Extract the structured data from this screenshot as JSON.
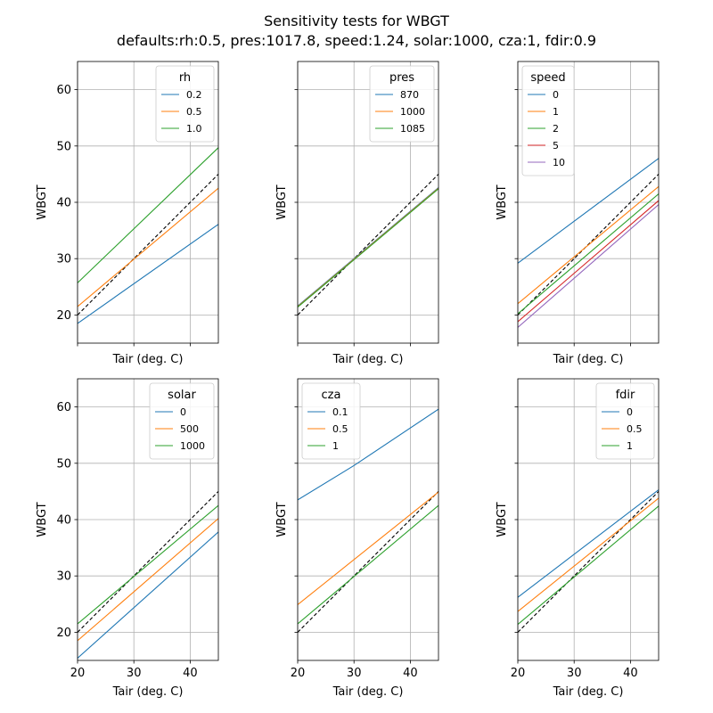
{
  "title_line1": "Sensitivity tests for WBGT",
  "title_line2": "defaults:rh:0.5, pres:1017.8, speed:1.24, solar:1000, cza:1, fdir:0.9",
  "chart_data": [
    {
      "type": "line",
      "id": "rh",
      "xlabel": "Tair (deg. C)",
      "ylabel": "WBGT",
      "xlim": [
        20,
        45
      ],
      "ylim": [
        15,
        65
      ],
      "xticks": [
        20,
        30,
        40
      ],
      "yticks": [
        20,
        30,
        40,
        50,
        60
      ],
      "show_xticklabels": false,
      "show_yticklabels": true,
      "grid": true,
      "legend_title": "rh",
      "legend_position": "upper-right",
      "reference_line": {
        "x": [
          20,
          45
        ],
        "y": [
          20,
          45
        ],
        "style": "dashed",
        "color": "#000000"
      },
      "series": [
        {
          "name": "0.2",
          "color": "#1f77b4",
          "x": [
            20,
            45
          ],
          "y": [
            18.5,
            36.1
          ]
        },
        {
          "name": "0.5",
          "color": "#ff7f0e",
          "x": [
            20,
            45
          ],
          "y": [
            21.5,
            42.5
          ]
        },
        {
          "name": "1.0",
          "color": "#2ca02c",
          "x": [
            20,
            45
          ],
          "y": [
            25.7,
            49.7
          ]
        }
      ]
    },
    {
      "type": "line",
      "id": "pres",
      "xlabel": "Tair (deg. C)",
      "ylabel": "WBGT",
      "xlim": [
        20,
        45
      ],
      "ylim": [
        15,
        65
      ],
      "xticks": [
        20,
        30,
        40
      ],
      "yticks": [
        20,
        30,
        40,
        50,
        60
      ],
      "show_xticklabels": false,
      "show_yticklabels": false,
      "grid": true,
      "legend_title": "pres",
      "legend_position": "upper-right",
      "reference_line": {
        "x": [
          20,
          45
        ],
        "y": [
          20,
          45
        ],
        "style": "dashed",
        "color": "#000000"
      },
      "series": [
        {
          "name": "870",
          "color": "#1f77b4",
          "x": [
            20,
            45
          ],
          "y": [
            21.6,
            42.6
          ]
        },
        {
          "name": "1000",
          "color": "#ff7f0e",
          "x": [
            20,
            45
          ],
          "y": [
            21.5,
            42.5
          ]
        },
        {
          "name": "1085",
          "color": "#2ca02c",
          "x": [
            20,
            45
          ],
          "y": [
            21.4,
            42.4
          ]
        }
      ]
    },
    {
      "type": "line",
      "id": "speed",
      "xlabel": "Tair (deg. C)",
      "ylabel": "WBGT",
      "xlim": [
        20,
        45
      ],
      "ylim": [
        15,
        65
      ],
      "xticks": [
        20,
        30,
        40
      ],
      "yticks": [
        20,
        30,
        40,
        50,
        60
      ],
      "show_xticklabels": false,
      "show_yticklabels": false,
      "grid": true,
      "legend_title": "speed",
      "legend_position": "upper-left",
      "reference_line": {
        "x": [
          20,
          45
        ],
        "y": [
          20,
          45
        ],
        "style": "dashed",
        "color": "#000000"
      },
      "series": [
        {
          "name": "0",
          "color": "#1f77b4",
          "x": [
            20,
            45
          ],
          "y": [
            29.2,
            47.8
          ]
        },
        {
          "name": "1",
          "color": "#ff7f0e",
          "x": [
            20,
            45
          ],
          "y": [
            22.0,
            42.8
          ]
        },
        {
          "name": "2",
          "color": "#2ca02c",
          "x": [
            20,
            45
          ],
          "y": [
            20.2,
            41.5
          ]
        },
        {
          "name": "5",
          "color": "#d62728",
          "x": [
            20,
            45
          ],
          "y": [
            18.8,
            40.3
          ]
        },
        {
          "name": "10",
          "color": "#9467bd",
          "x": [
            20,
            45
          ],
          "y": [
            17.8,
            39.6
          ]
        }
      ]
    },
    {
      "type": "line",
      "id": "solar",
      "xlabel": "Tair (deg. C)",
      "ylabel": "WBGT",
      "xlim": [
        20,
        45
      ],
      "ylim": [
        15,
        65
      ],
      "xticks": [
        20,
        30,
        40
      ],
      "yticks": [
        20,
        30,
        40,
        50,
        60
      ],
      "show_xticklabels": true,
      "show_yticklabels": true,
      "grid": true,
      "legend_title": "solar",
      "legend_position": "upper-right",
      "reference_line": {
        "x": [
          20,
          45
        ],
        "y": [
          20,
          45
        ],
        "style": "dashed",
        "color": "#000000"
      },
      "series": [
        {
          "name": "0",
          "color": "#1f77b4",
          "x": [
            20,
            45
          ],
          "y": [
            15.4,
            37.8
          ]
        },
        {
          "name": "500",
          "color": "#ff7f0e",
          "x": [
            20,
            45
          ],
          "y": [
            18.5,
            40.2
          ]
        },
        {
          "name": "1000",
          "color": "#2ca02c",
          "x": [
            20,
            45
          ],
          "y": [
            21.5,
            42.5
          ]
        }
      ]
    },
    {
      "type": "line",
      "id": "cza",
      "xlabel": "Tair (deg. C)",
      "ylabel": "WBGT",
      "xlim": [
        20,
        45
      ],
      "ylim": [
        15,
        65
      ],
      "xticks": [
        20,
        30,
        40
      ],
      "yticks": [
        20,
        30,
        40,
        50,
        60
      ],
      "show_xticklabels": true,
      "show_yticklabels": false,
      "grid": true,
      "legend_title": "cza",
      "legend_position": "upper-left",
      "reference_line": {
        "x": [
          20,
          45
        ],
        "y": [
          20,
          45
        ],
        "style": "dashed",
        "color": "#000000"
      },
      "series": [
        {
          "name": "0.1",
          "color": "#1f77b4",
          "x": [
            20,
            30,
            45
          ],
          "y": [
            43.5,
            49.6,
            59.6
          ]
        },
        {
          "name": "0.5",
          "color": "#ff7f0e",
          "x": [
            20,
            45
          ],
          "y": [
            24.9,
            44.9
          ]
        },
        {
          "name": "1",
          "color": "#2ca02c",
          "x": [
            20,
            45
          ],
          "y": [
            21.5,
            42.5
          ]
        }
      ]
    },
    {
      "type": "line",
      "id": "fdir",
      "xlabel": "Tair (deg. C)",
      "ylabel": "WBGT",
      "xlim": [
        20,
        45
      ],
      "ylim": [
        15,
        65
      ],
      "xticks": [
        20,
        30,
        40
      ],
      "yticks": [
        20,
        30,
        40,
        50,
        60
      ],
      "show_xticklabels": true,
      "show_yticklabels": false,
      "grid": true,
      "legend_title": "fdir",
      "legend_position": "upper-right",
      "reference_line": {
        "x": [
          20,
          45
        ],
        "y": [
          20,
          45
        ],
        "style": "dashed",
        "color": "#000000"
      },
      "series": [
        {
          "name": "0",
          "color": "#1f77b4",
          "x": [
            20,
            45
          ],
          "y": [
            26.2,
            45.3
          ]
        },
        {
          "name": "0.5",
          "color": "#ff7f0e",
          "x": [
            20,
            45
          ],
          "y": [
            23.7,
            43.8
          ]
        },
        {
          "name": "1",
          "color": "#2ca02c",
          "x": [
            20,
            45
          ],
          "y": [
            21.4,
            42.4
          ]
        }
      ]
    }
  ]
}
